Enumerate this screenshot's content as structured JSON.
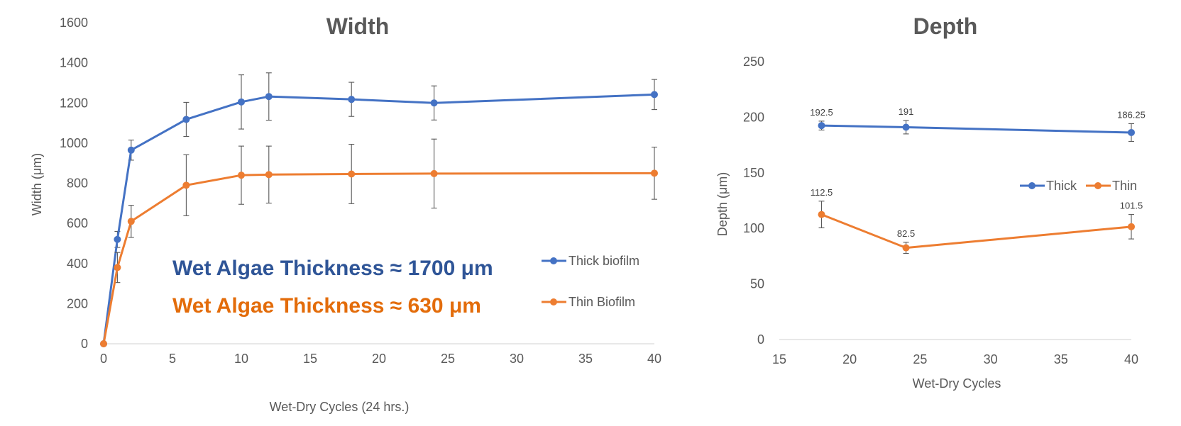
{
  "chart_data": [
    {
      "type": "line",
      "title": "Width",
      "xlabel": "Wet-Dry Cycles (24 hrs.)",
      "ylabel": "Width (μm)",
      "xlim": [
        0,
        40
      ],
      "ylim": [
        0,
        1600
      ],
      "xticks": [
        "0",
        "5",
        "10",
        "15",
        "20",
        "25",
        "30",
        "35",
        "40"
      ],
      "yticks": [
        "0",
        "200",
        "400",
        "600",
        "800",
        "1000",
        "1200",
        "1400",
        "1600"
      ],
      "grid": false,
      "legend_position": "right",
      "series": [
        {
          "name": "Thick biofilm",
          "color": "#4472C4",
          "x": [
            0,
            1,
            2,
            6,
            10,
            12,
            18,
            24,
            40
          ],
          "y": [
            0,
            520,
            965,
            1118,
            1205,
            1232,
            1218,
            1200,
            1242
          ],
          "error": [
            0,
            40,
            50,
            85,
            135,
            118,
            85,
            85,
            75
          ]
        },
        {
          "name": "Thin Biofilm",
          "color": "#ED7D31",
          "x": [
            0,
            1,
            2,
            6,
            10,
            12,
            18,
            24,
            40
          ],
          "y": [
            0,
            380,
            610,
            790,
            840,
            843,
            846,
            848,
            850
          ],
          "error": [
            0,
            75,
            80,
            152,
            145,
            142,
            148,
            172,
            130
          ]
        }
      ],
      "annotations": [
        {
          "text": "Wet Algae Thickness ≈ 1700 μm",
          "color": "#2F5597"
        },
        {
          "text": "Wet Algae Thickness ≈ 630 μm",
          "color": "#E36C0A"
        }
      ]
    },
    {
      "type": "line",
      "title": "Depth",
      "xlabel": "Wet-Dry Cycles",
      "ylabel": "Depth (μm)",
      "xlim": [
        15,
        40
      ],
      "ylim": [
        0,
        250
      ],
      "xticks": [
        "15",
        "20",
        "25",
        "30",
        "35",
        "40"
      ],
      "yticks": [
        "0",
        "50",
        "100",
        "150",
        "200",
        "250"
      ],
      "grid": false,
      "legend_position": "right",
      "series": [
        {
          "name": "Thick",
          "color": "#4472C4",
          "x": [
            18,
            24,
            40
          ],
          "y": [
            192.5,
            191,
            186.25
          ],
          "labels": [
            "192.5",
            "191",
            "186.25"
          ],
          "error": [
            4,
            6,
            8
          ]
        },
        {
          "name": "Thin",
          "color": "#ED7D31",
          "x": [
            18,
            24,
            40
          ],
          "y": [
            112.5,
            82.5,
            101.5
          ],
          "labels": [
            "112.5",
            "82.5",
            "101.5"
          ],
          "error": [
            12,
            5,
            11
          ]
        }
      ]
    }
  ]
}
